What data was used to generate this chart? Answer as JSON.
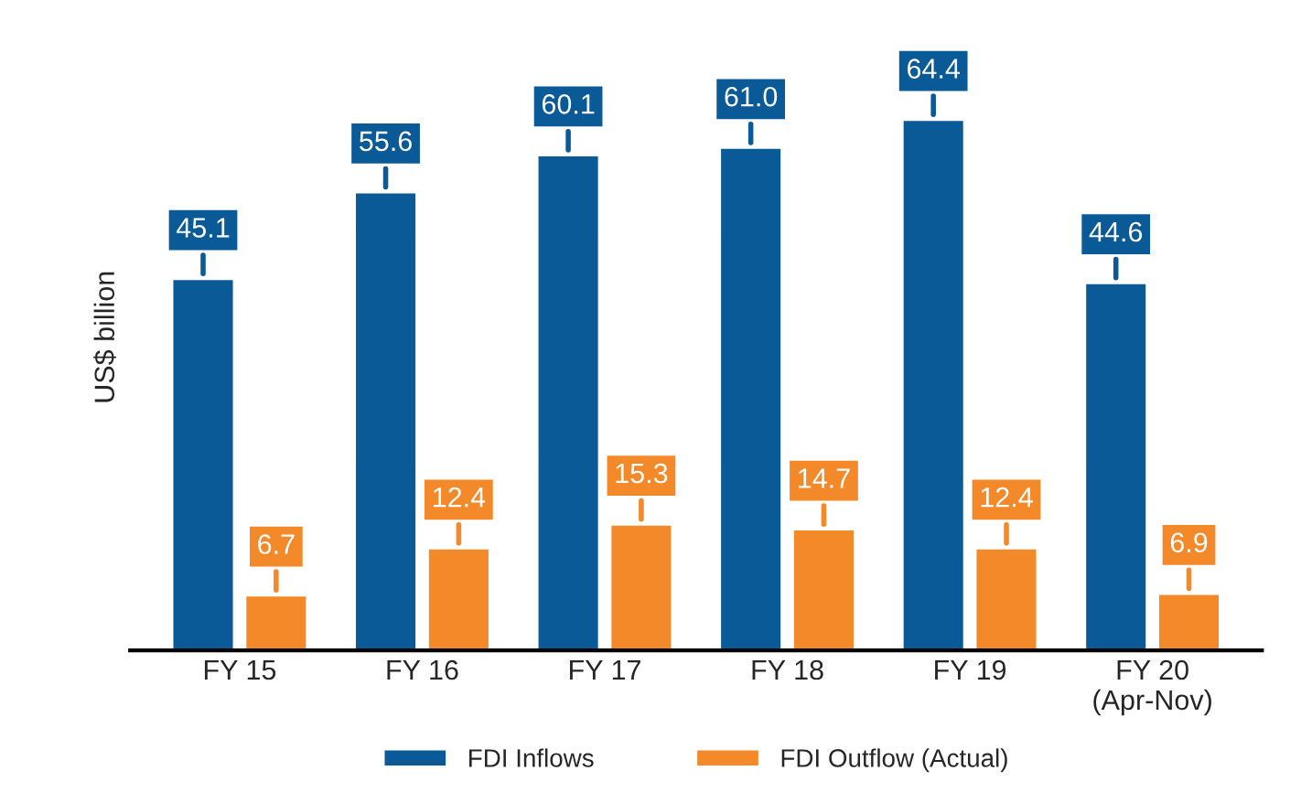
{
  "chart_data": {
    "type": "bar",
    "ylabel": "US$ billion",
    "categories": [
      "FY 15",
      "FY 16",
      "FY 17",
      "FY 18",
      "FY 19",
      "FY 20\n(Apr-Nov)"
    ],
    "series": [
      {
        "name": "FDI Inflows",
        "color": "#0b5a98",
        "values": [
          45.1,
          55.6,
          60.1,
          61.0,
          64.4,
          44.6
        ],
        "value_labels": [
          "45.1",
          "55.6",
          "60.1",
          "61.0",
          "64.4",
          "44.6"
        ]
      },
      {
        "name": "FDI Outflow (Actual)",
        "color": "#f4892a",
        "values": [
          6.7,
          12.4,
          15.3,
          14.7,
          12.4,
          6.9
        ],
        "value_labels": [
          "6.7",
          "12.4",
          "15.3",
          "14.7",
          "12.4",
          "6.9"
        ]
      }
    ],
    "legend": "bottom",
    "grid": false
  }
}
